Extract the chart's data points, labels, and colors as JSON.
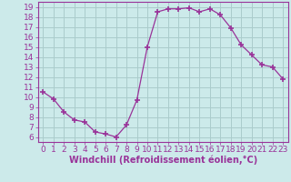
{
  "hours": [
    0,
    1,
    2,
    3,
    4,
    5,
    6,
    7,
    8,
    9,
    10,
    11,
    12,
    13,
    14,
    15,
    16,
    17,
    18,
    19,
    20,
    21,
    22,
    23
  ],
  "values": [
    10.5,
    9.8,
    8.5,
    7.7,
    7.5,
    6.5,
    6.3,
    6.0,
    7.2,
    9.7,
    15.0,
    18.5,
    18.8,
    18.8,
    18.9,
    18.5,
    18.8,
    18.2,
    16.9,
    15.2,
    14.2,
    13.2,
    13.0,
    11.8
  ],
  "line_color": "#993399",
  "marker": "+",
  "marker_size": 4,
  "marker_linewidth": 1.2,
  "bg_color": "#cceaea",
  "grid_color": "#aacccc",
  "xlim": [
    -0.5,
    23.5
  ],
  "ylim": [
    5.5,
    19.5
  ],
  "yticks": [
    6,
    7,
    8,
    9,
    10,
    11,
    12,
    13,
    14,
    15,
    16,
    17,
    18,
    19
  ],
  "xticks": [
    0,
    1,
    2,
    3,
    4,
    5,
    6,
    7,
    8,
    9,
    10,
    11,
    12,
    13,
    14,
    15,
    16,
    17,
    18,
    19,
    20,
    21,
    22,
    23
  ],
  "xlabel": "Windchill (Refroidissement éolien,°C)",
  "xlabel_fontsize": 7,
  "tick_fontsize": 6.5,
  "axis_color": "#993399",
  "linewidth": 0.9
}
